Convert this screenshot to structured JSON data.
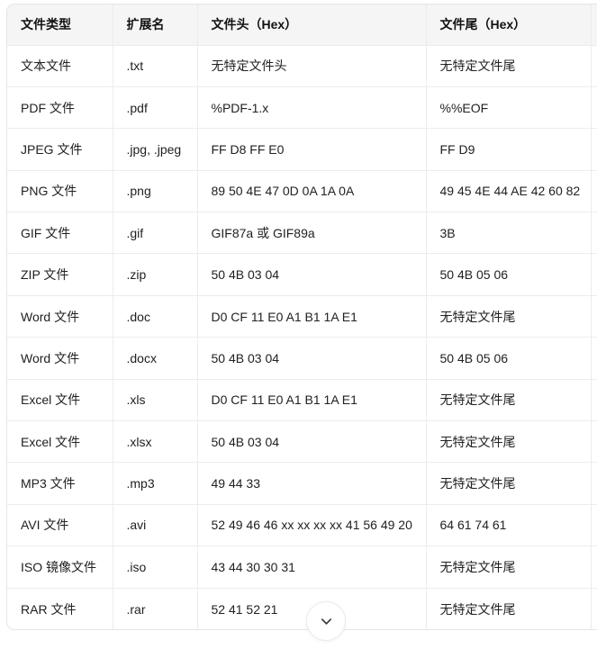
{
  "table": {
    "columns": [
      {
        "label": "文件类型"
      },
      {
        "label": "扩展名"
      },
      {
        "label": "文件头（Hex）"
      },
      {
        "label": "文件尾（Hex）"
      },
      {
        "label": ""
      }
    ],
    "rows": [
      {
        "type": "文本文件",
        "ext": ".txt",
        "header": "无特定文件头",
        "tail": "无特定文件尾"
      },
      {
        "type": "PDF 文件",
        "ext": ".pdf",
        "header": "%PDF-1.x",
        "tail": "%%EOF"
      },
      {
        "type": "JPEG 文件",
        "ext": ".jpg, .jpeg",
        "header": "FF D8 FF E0",
        "tail": "FF D9"
      },
      {
        "type": "PNG 文件",
        "ext": ".png",
        "header": "89 50 4E 47 0D 0A 1A 0A",
        "tail": "49 45 4E 44 AE 42 60 82"
      },
      {
        "type": "GIF 文件",
        "ext": ".gif",
        "header": "GIF87a 或 GIF89a",
        "tail": "3B"
      },
      {
        "type": "ZIP 文件",
        "ext": ".zip",
        "header": "50 4B 03 04",
        "tail": "50 4B 05 06"
      },
      {
        "type": "Word 文件",
        "ext": ".doc",
        "header": "D0 CF 11 E0 A1 B1 1A E1",
        "tail": "无特定文件尾"
      },
      {
        "type": "Word 文件",
        "ext": ".docx",
        "header": "50 4B 03 04",
        "tail": "50 4B 05 06"
      },
      {
        "type": "Excel 文件",
        "ext": ".xls",
        "header": "D0 CF 11 E0 A1 B1 1A E1",
        "tail": "无特定文件尾"
      },
      {
        "type": "Excel 文件",
        "ext": ".xlsx",
        "header": "50 4B 03 04",
        "tail": "无特定文件尾"
      },
      {
        "type": "MP3 文件",
        "ext": ".mp3",
        "header": "49 44 33",
        "tail": "无特定文件尾"
      },
      {
        "type": "AVI 文件",
        "ext": ".avi",
        "header": "52 49 46 46 xx xx xx xx 41 56 49 20",
        "tail": "64 61 74 61"
      },
      {
        "type": "ISO 镜像文件",
        "ext": ".iso",
        "header": "43 44 30 30 31",
        "tail": "无特定文件尾"
      },
      {
        "type": "RAR 文件",
        "ext": ".rar",
        "header": "52 41 52 21",
        "tail": "无特定文件尾"
      }
    ]
  },
  "expand_button": {
    "icon": "chevron-down"
  },
  "colors": {
    "header_bg": "#f5f5f6",
    "header_text": "#111111",
    "body_text": "#212121",
    "border_light": "#ececec",
    "border_strong": "#e5e5e5",
    "chevron": "#3c3c3c"
  }
}
